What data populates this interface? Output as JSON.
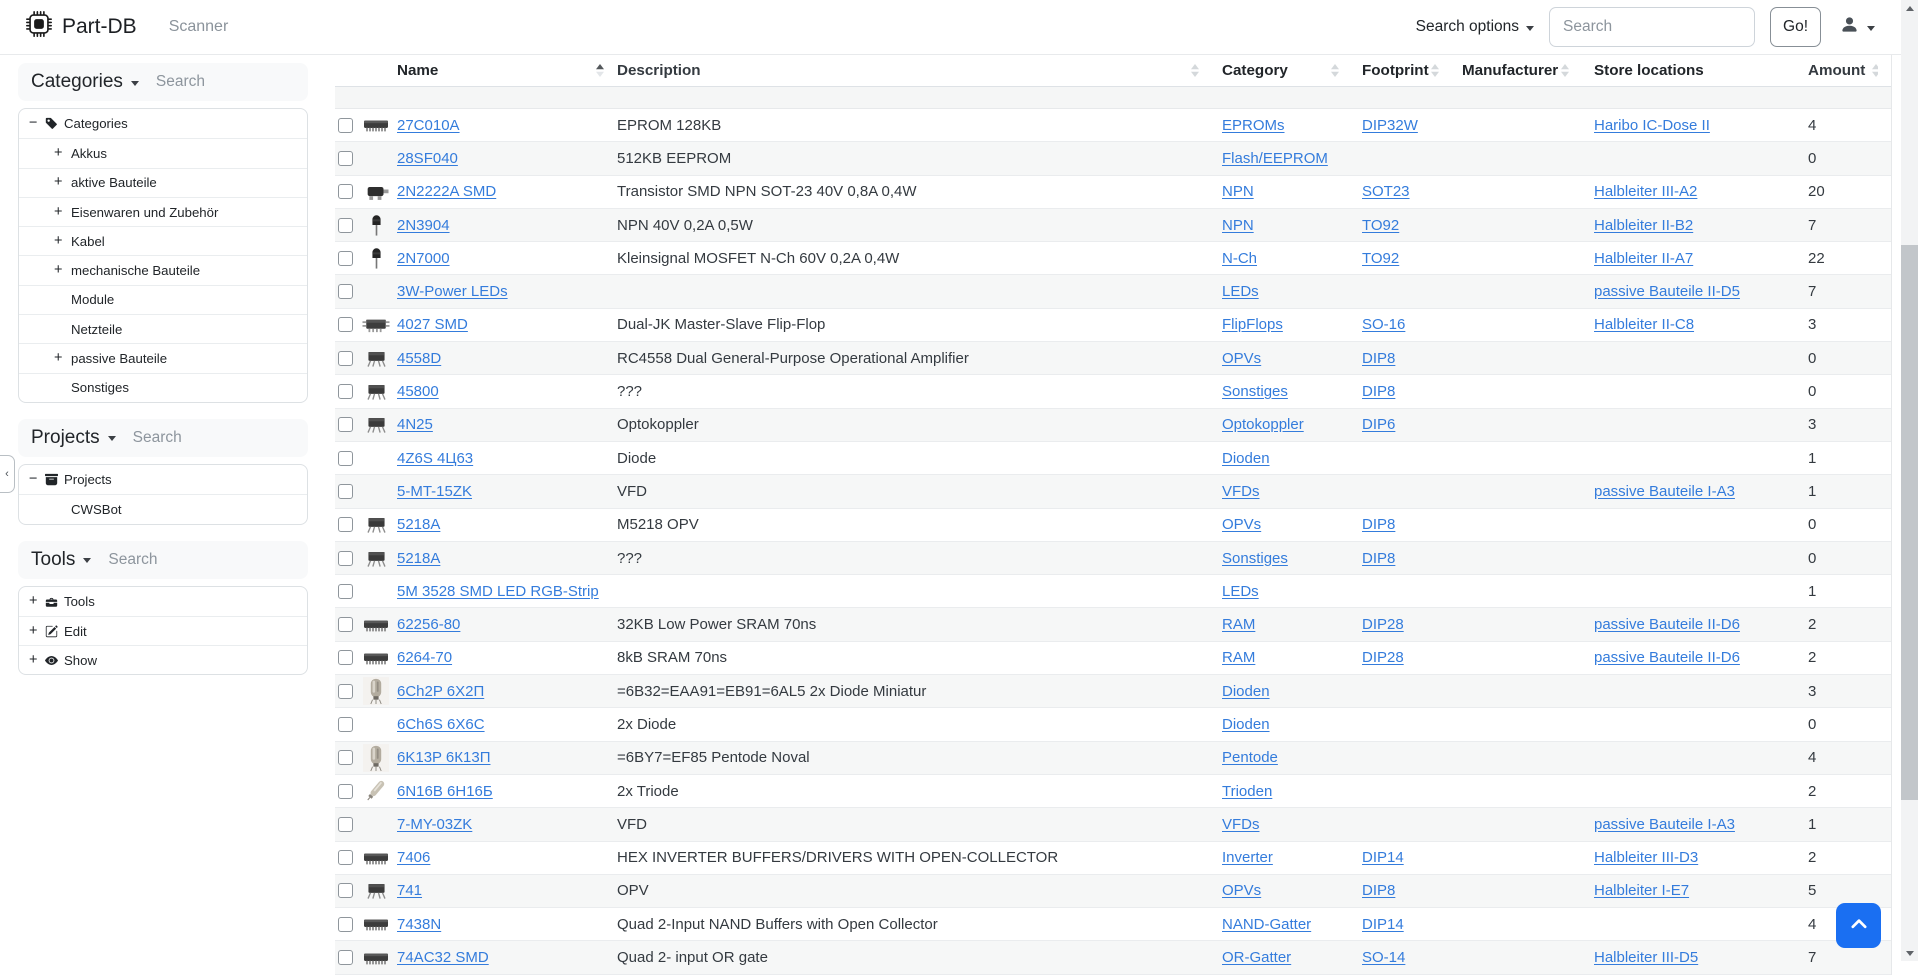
{
  "colors": {
    "link": "#347cdc",
    "accent": "#1a6ff2",
    "panel_header_bg": "#f8f9fa"
  },
  "navbar": {
    "brand": "Part-DB",
    "brand_icon": "cpu-icon",
    "nav_items": [
      {
        "label": "Scanner"
      }
    ],
    "search_options_label": "Search options",
    "search_placeholder": "Search",
    "go_label": "Go!"
  },
  "sidebar": {
    "collapse_glyph": "‹",
    "panels": [
      {
        "title": "Categories",
        "search_placeholder": "Search",
        "items": [
          {
            "toggle": "minus",
            "icon": "tag-icon",
            "label": "Categories",
            "level": 0
          },
          {
            "toggle": "plus",
            "icon": null,
            "label": "Akkus",
            "level": 1
          },
          {
            "toggle": "plus",
            "icon": null,
            "label": "aktive Bauteile",
            "level": 1
          },
          {
            "toggle": "plus",
            "icon": null,
            "label": "Eisenwaren und Zubehör",
            "level": 1
          },
          {
            "toggle": "plus",
            "icon": null,
            "label": "Kabel",
            "level": 1
          },
          {
            "toggle": "plus",
            "icon": null,
            "label": "mechanische Bauteile",
            "level": 1
          },
          {
            "toggle": "none",
            "icon": null,
            "label": "Module",
            "level": 1
          },
          {
            "toggle": "none",
            "icon": null,
            "label": "Netzteile",
            "level": 1
          },
          {
            "toggle": "plus",
            "icon": null,
            "label": "passive Bauteile",
            "level": 1
          },
          {
            "toggle": "none",
            "icon": null,
            "label": "Sonstiges",
            "level": 1
          }
        ]
      },
      {
        "title": "Projects",
        "search_placeholder": "Search",
        "items": [
          {
            "toggle": "minus",
            "icon": "archive-icon",
            "label": "Projects",
            "level": 0
          },
          {
            "toggle": "none",
            "icon": null,
            "label": "CWSBot",
            "level": 1
          }
        ]
      },
      {
        "title": "Tools",
        "search_placeholder": "Search",
        "items": [
          {
            "toggle": "plus",
            "icon": "toolbox-icon",
            "label": "Tools",
            "level": 0
          },
          {
            "toggle": "plus",
            "icon": "pencil-square-icon",
            "label": "Edit",
            "level": 0
          },
          {
            "toggle": "plus",
            "icon": "eye-icon",
            "label": "Show",
            "level": 0
          }
        ]
      }
    ]
  },
  "table": {
    "columns": [
      {
        "key": "name",
        "label": "Name",
        "sort": "asc"
      },
      {
        "key": "description",
        "label": "Description",
        "sort": "unsorted"
      },
      {
        "key": "category",
        "label": "Category",
        "sort": "unsorted"
      },
      {
        "key": "footprint",
        "label": "Footprint",
        "sort": "unsorted"
      },
      {
        "key": "manufacturer",
        "label": "Manufacturer",
        "sort": "unsorted"
      },
      {
        "key": "store_location",
        "label": "Store locations",
        "sort": "none"
      },
      {
        "key": "amount",
        "label": "Amount",
        "sort": "unsorted"
      }
    ],
    "rows": [
      {
        "name": "27C010A",
        "thumb": "chip-side",
        "description": "EPROM 128KB",
        "category": "EPROMs",
        "footprint": "DIP32W",
        "manufacturer": "",
        "store_location": "Haribo IC-Dose II",
        "amount": "4"
      },
      {
        "name": "28SF040",
        "thumb": "none",
        "description": "512KB EEPROM",
        "category": "Flash/EEPROM",
        "footprint": "",
        "manufacturer": "",
        "store_location": "",
        "amount": "0"
      },
      {
        "name": "2N2222A SMD",
        "thumb": "sot23",
        "description": "Transistor SMD NPN SOT-23 40V 0,8A 0,4W",
        "category": "NPN",
        "footprint": "SOT23",
        "manufacturer": "",
        "store_location": "Halbleiter III-A2",
        "amount": "20"
      },
      {
        "name": "2N3904",
        "thumb": "to92",
        "description": "NPN 40V 0,2A 0,5W",
        "category": "NPN",
        "footprint": "TO92",
        "manufacturer": "",
        "store_location": "Halbleiter II-B2",
        "amount": "7"
      },
      {
        "name": "2N7000",
        "thumb": "to92",
        "description": "Kleinsignal MOSFET N-Ch 60V 0,2A 0,4W",
        "category": "N-Ch",
        "footprint": "TO92",
        "manufacturer": "",
        "store_location": "Halbleiter II-A7",
        "amount": "22"
      },
      {
        "name": "3W-Power LEDs",
        "thumb": "none",
        "description": "",
        "category": "LEDs",
        "footprint": "",
        "manufacturer": "",
        "store_location": "passive Bauteile II-D5",
        "amount": "7"
      },
      {
        "name": "4027 SMD",
        "thumb": "smd",
        "description": "Dual-JK Master-Slave Flip-Flop",
        "category": "FlipFlops",
        "footprint": "SO-16",
        "manufacturer": "",
        "store_location": "Halbleiter II-C8",
        "amount": "3"
      },
      {
        "name": "4558D",
        "thumb": "dip-front",
        "description": "RC4558 Dual General-Purpose Operational Amplifier",
        "category": "OPVs",
        "footprint": "DIP8",
        "manufacturer": "",
        "store_location": "",
        "amount": "0"
      },
      {
        "name": "45800",
        "thumb": "dip-front",
        "description": "???",
        "category": "Sonstiges",
        "footprint": "DIP8",
        "manufacturer": "",
        "store_location": "",
        "amount": "0"
      },
      {
        "name": "4N25",
        "thumb": "dip-front",
        "description": "Optokoppler",
        "category": "Optokoppler",
        "footprint": "DIP6",
        "manufacturer": "",
        "store_location": "",
        "amount": "3"
      },
      {
        "name": "4Z6S 4Ц63",
        "thumb": "none",
        "description": "Diode",
        "category": "Dioden",
        "footprint": "",
        "manufacturer": "",
        "store_location": "",
        "amount": "1"
      },
      {
        "name": "5-MT-15ZK",
        "thumb": "none",
        "description": "VFD",
        "category": "VFDs",
        "footprint": "",
        "manufacturer": "",
        "store_location": "passive Bauteile I-A3",
        "amount": "1"
      },
      {
        "name": "5218A",
        "thumb": "dip-front",
        "description": "M5218 OPV",
        "category": "OPVs",
        "footprint": "DIP8",
        "manufacturer": "",
        "store_location": "",
        "amount": "0"
      },
      {
        "name": "5218A",
        "thumb": "dip-front",
        "description": "???",
        "category": "Sonstiges",
        "footprint": "DIP8",
        "manufacturer": "",
        "store_location": "",
        "amount": "0"
      },
      {
        "name": "5M 3528 SMD LED RGB-Strip",
        "thumb": "none",
        "description": "",
        "category": "LEDs",
        "footprint": "",
        "manufacturer": "",
        "store_location": "",
        "amount": "1"
      },
      {
        "name": "62256-80",
        "thumb": "chip-side",
        "description": "32KB Low Power SRAM 70ns",
        "category": "RAM",
        "footprint": "DIP28",
        "manufacturer": "",
        "store_location": "passive Bauteile II-D6",
        "amount": "2"
      },
      {
        "name": "6264-70",
        "thumb": "chip-side",
        "description": "8kB SRAM 70ns",
        "category": "RAM",
        "footprint": "DIP28",
        "manufacturer": "",
        "store_location": "passive Bauteile II-D6",
        "amount": "2"
      },
      {
        "name": "6Ch2P 6Х2П",
        "thumb": "tube",
        "description": "=6B32=EAA91=EB91=6AL5 2x Diode Miniatur",
        "category": "Dioden",
        "footprint": "",
        "manufacturer": "",
        "store_location": "",
        "amount": "3"
      },
      {
        "name": "6Ch6S 6X6C",
        "thumb": "none",
        "description": "2x Diode",
        "category": "Dioden",
        "footprint": "",
        "manufacturer": "",
        "store_location": "",
        "amount": "0"
      },
      {
        "name": "6K13P 6К13П",
        "thumb": "tube",
        "description": "=6BY7=EF85 Pentode Noval",
        "category": "Pentode",
        "footprint": "",
        "manufacturer": "",
        "store_location": "",
        "amount": "4"
      },
      {
        "name": "6N16B 6Н16Б",
        "thumb": "tube-slim",
        "description": "2x Triode",
        "category": "Trioden",
        "footprint": "",
        "manufacturer": "",
        "store_location": "",
        "amount": "2"
      },
      {
        "name": "7-MY-03ZK",
        "thumb": "none",
        "description": "VFD",
        "category": "VFDs",
        "footprint": "",
        "manufacturer": "",
        "store_location": "passive Bauteile I-A3",
        "amount": "1"
      },
      {
        "name": "7406",
        "thumb": "chip-side",
        "description": "HEX INVERTER BUFFERS/DRIVERS WITH OPEN-COLLECTOR",
        "category": "Inverter",
        "footprint": "DIP14",
        "manufacturer": "",
        "store_location": "Halbleiter III-D3",
        "amount": "2"
      },
      {
        "name": "741",
        "thumb": "dip-front",
        "description": "OPV",
        "category": "OPVs",
        "footprint": "DIP8",
        "manufacturer": "",
        "store_location": "Halbleiter I-E7",
        "amount": "5"
      },
      {
        "name": "7438N",
        "thumb": "chip-side",
        "description": "Quad 2-Input NAND Buffers with Open Collector",
        "category": "NAND-Gatter",
        "footprint": "DIP14",
        "manufacturer": "",
        "store_location": "",
        "amount": "4"
      },
      {
        "name": "74AC32 SMD",
        "thumb": "chip-side",
        "description": "Quad 2- input OR gate",
        "category": "OR-Gatter",
        "footprint": "SO-14",
        "manufacturer": "",
        "store_location": "Halbleiter III-D5",
        "amount": "7"
      }
    ]
  }
}
